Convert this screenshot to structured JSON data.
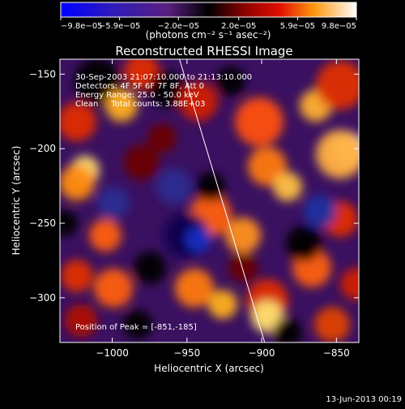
{
  "chart_data": {
    "type": "heatmap",
    "title": "Reconstructed RHESSI Image",
    "xlabel": "Heliocentric X (arcsec)",
    "ylabel": "Heliocentric Y (arcsec)",
    "xlim": [
      -1035,
      -835
    ],
    "ylim": [
      -330,
      -140
    ],
    "xticks": [
      -1000,
      -950,
      -900,
      -850
    ],
    "xtick_labels": [
      "−1000",
      "−950",
      "−900",
      "−850"
    ],
    "yticks": [
      -150,
      -200,
      -250,
      -300
    ],
    "ytick_labels": [
      "−150",
      "−200",
      "−250",
      "−300"
    ],
    "colorbar": {
      "range": [
        -9.8e-05,
        9.8e-05
      ],
      "ticks": [
        -9.8e-05,
        -5.9e-05,
        -2e-05,
        2e-05,
        5.9e-05,
        9.8e-05
      ],
      "tick_labels": [
        "−9.8e−05",
        "−5.9e−05",
        "−2.0e−05",
        "2.0e−05",
        "5.9e−05",
        "9.8e−05"
      ],
      "units_label": "(photons cm⁻² s⁻¹ asec⁻²)"
    },
    "annotations": {
      "time_range": "30-Sep-2003 21:07:10.000 to 21:13:10.000",
      "detectors": "Detectors: 4F 5F 6F 7F 8F, Att 0",
      "energy": "Energy Range: 25.0 - 50.0 keV",
      "algorithm": "Clean     Total counts: 3.88E+03",
      "peak": "Position of Peak = [-851,-185]"
    },
    "limb_line": [
      [
        -955,
        -140
      ],
      [
        -898,
        -330
      ]
    ],
    "grid": false
  },
  "footer": {
    "timestamp": "13-Jun-2013 00:19"
  }
}
